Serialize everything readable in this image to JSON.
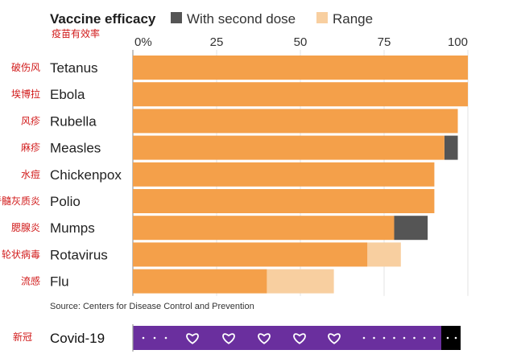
{
  "chart_data": {
    "type": "bar",
    "title": "Vaccine efficacy",
    "subtitle_cn": "疫苗有效率",
    "legend": [
      {
        "label": "With second dose",
        "color": "#555555"
      },
      {
        "label": "Range",
        "color": "#f8cfa0"
      }
    ],
    "xlim": [
      0,
      100
    ],
    "x_ticks": [
      {
        "value": 0,
        "label": "0%"
      },
      {
        "value": 25,
        "label": "25"
      },
      {
        "value": 50,
        "label": "50"
      },
      {
        "value": 75,
        "label": "75"
      },
      {
        "value": 100,
        "label": "100"
      }
    ],
    "categories": [
      "Tetanus",
      "Ebola",
      "Rubella",
      "Measles",
      "Chickenpox",
      "Polio",
      "Mumps",
      "Rotavirus",
      "Flu"
    ],
    "categories_cn": [
      "破伤风",
      "埃博拉",
      "风疹",
      "麻疹",
      "水痘",
      "脊髓灰质炎",
      "腮腺炎",
      "轮状病毒",
      "流感"
    ],
    "series": [
      {
        "name": "Efficacy",
        "color": "#f4a04a",
        "values": [
          100,
          100,
          97,
          93,
          90,
          90,
          78,
          70,
          40
        ]
      },
      {
        "name": "With second dose",
        "color": "#555555",
        "values": [
          null,
          null,
          null,
          97,
          null,
          null,
          88,
          null,
          null
        ]
      },
      {
        "name": "Range",
        "color": "#f8cfa0",
        "values": [
          null,
          null,
          null,
          null,
          null,
          null,
          null,
          80,
          60
        ]
      }
    ],
    "source": "Source: Centers for Disease Control and Prevention"
  },
  "covid": {
    "label": "Covid-19",
    "label_cn": "新冠",
    "bar_color": "#6a2f9e",
    "end_color": "#000000",
    "hearts": 5
  }
}
